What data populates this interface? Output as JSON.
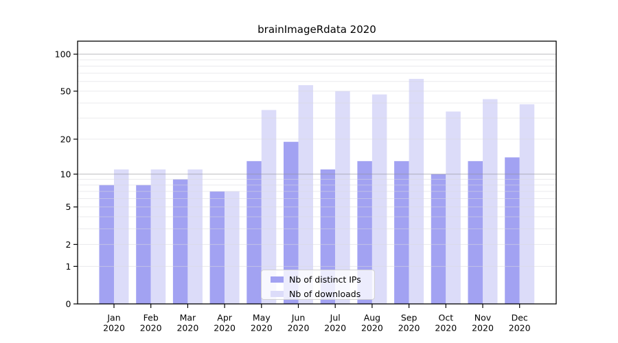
{
  "chart_data": {
    "type": "bar",
    "title": "brainImageRdata 2020",
    "categories": [
      "Jan 2020",
      "Feb 2020",
      "Mar 2020",
      "Apr 2020",
      "May 2020",
      "Jun 2020",
      "Jul 2020",
      "Aug 2020",
      "Sep 2020",
      "Oct 2020",
      "Nov 2020",
      "Dec 2020"
    ],
    "series": [
      {
        "name": "Nb of distinct IPs",
        "color": "#a2a2f2",
        "values": [
          8,
          8,
          9,
          7,
          13,
          19,
          11,
          13,
          13,
          10,
          13,
          14
        ]
      },
      {
        "name": "Nb of downloads",
        "color": "#dcdcf9",
        "values": [
          11,
          11,
          11,
          7,
          35,
          56,
          50,
          47,
          63,
          34,
          43,
          39
        ]
      }
    ],
    "y_axis": {
      "scale": "log10(value+1)",
      "range": [
        0,
        127
      ],
      "tick_values": [
        0,
        1,
        2,
        5,
        10,
        20,
        50,
        100
      ],
      "tick_labels": [
        "0",
        "1",
        "2",
        "5",
        "10",
        "20",
        "50",
        "100"
      ],
      "minor_grid_values": [
        1,
        2,
        3,
        4,
        5,
        6,
        7,
        8,
        9,
        20,
        30,
        40,
        50,
        60,
        70,
        80,
        90
      ],
      "major_grid_values": [
        10,
        100
      ]
    },
    "legend": {
      "position": "lower-center"
    },
    "colors": {
      "background": "#ffffff",
      "axis": "#000000",
      "text": "#000000",
      "grid_minor": "#d9d9de",
      "grid_major": "#909094",
      "legend_border": "#d2d2d2"
    }
  }
}
